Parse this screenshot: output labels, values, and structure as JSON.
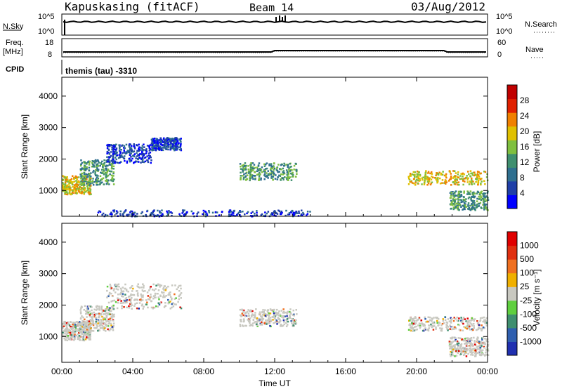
{
  "header": {
    "station": "Kapuskasing (fitACF)",
    "beam": "Beam 14",
    "date": "03/Aug/2012"
  },
  "status_panels": {
    "nsky_label": "N.Sky",
    "nsearch_label": "N.Search",
    "nsky_ticks": [
      "10^5",
      "10^0"
    ],
    "nsearch_ticks": [
      "10^5",
      "10^0"
    ],
    "freq_label_1": "Freq.",
    "freq_label_2": "[MHz]",
    "freq_ticks": [
      "18",
      "8"
    ],
    "nave_label": "Nave",
    "nave_ticks": [
      "60",
      "0"
    ],
    "cpid_label": "CPID",
    "cpid_text": "themis (tau) -3310"
  },
  "colors": {
    "power_scale": [
      "#0000ff",
      "#1f3fa8",
      "#2f6f8f",
      "#3f8f6f",
      "#7fbf3f",
      "#e0c000",
      "#f08000",
      "#e02000",
      "#c00000"
    ],
    "velocity_scale": [
      "#2030b0",
      "#2f5faf",
      "#3f8f6f",
      "#5fcf3f",
      "#c8c8c0",
      "#f0b000",
      "#f07020",
      "#e03010",
      "#e00000"
    ]
  },
  "chart_data": [
    {
      "type": "heatmap",
      "name": "power",
      "xlabel": "",
      "ylabel": "Slant Range [km]",
      "x_ticks": [
        "00:00",
        "04:00",
        "08:00",
        "12:00",
        "16:00",
        "20:00",
        "00:00"
      ],
      "y_ticks": [
        "1000",
        "2000",
        "3000",
        "4000"
      ],
      "xlim_hours": [
        0,
        24
      ],
      "ylim_km": [
        180,
        4600
      ],
      "colorbar_label": "Power [dB]",
      "colorbar_ticks": [
        "28",
        "24",
        "20",
        "16",
        "12",
        "8",
        "4"
      ],
      "features": [
        {
          "t0": 0.0,
          "t1": 1.6,
          "r0": 900,
          "r1": 1500,
          "level": "high"
        },
        {
          "t0": 1.0,
          "t1": 2.9,
          "r0": 1200,
          "r1": 2000,
          "level": "mid"
        },
        {
          "t0": 2.5,
          "t1": 5.0,
          "r0": 1900,
          "r1": 2500,
          "level": "low"
        },
        {
          "t0": 5.0,
          "t1": 6.7,
          "r0": 2300,
          "r1": 2700,
          "level": "low"
        },
        {
          "t0": 10.0,
          "t1": 13.2,
          "r0": 1350,
          "r1": 1900,
          "level": "mid"
        },
        {
          "t0": 19.5,
          "t1": 24.0,
          "r0": 1200,
          "r1": 1650,
          "level": "high"
        },
        {
          "t0": 21.8,
          "t1": 24.0,
          "r0": 400,
          "r1": 1000,
          "level": "mid"
        },
        {
          "t0": 2.0,
          "t1": 14.0,
          "r0": 200,
          "r1": 400,
          "level": "low"
        }
      ]
    },
    {
      "type": "heatmap",
      "name": "velocity",
      "xlabel": "Time UT",
      "ylabel": "Slant Range [km]",
      "x_ticks": [
        "00:00",
        "04:00",
        "08:00",
        "12:00",
        "16:00",
        "20:00",
        "00:00"
      ],
      "y_ticks": [
        "1000",
        "2000",
        "3000",
        "4000"
      ],
      "xlim_hours": [
        0,
        24
      ],
      "ylim_km": [
        180,
        4600
      ],
      "colorbar_label": "Velocity [m s⁻¹]",
      "colorbar_ticks": [
        "1000",
        "500",
        "100",
        "25",
        "-25",
        "-100",
        "-500",
        "-1000"
      ],
      "features": [
        {
          "t0": 0.0,
          "t1": 1.6,
          "r0": 900,
          "r1": 1500,
          "level": "ground"
        },
        {
          "t0": 1.0,
          "t1": 2.9,
          "r0": 1200,
          "r1": 2000,
          "level": "ground"
        },
        {
          "t0": 2.5,
          "t1": 6.7,
          "r0": 1900,
          "r1": 2700,
          "level": "ground"
        },
        {
          "t0": 10.0,
          "t1": 13.2,
          "r0": 1350,
          "r1": 1900,
          "level": "ground"
        },
        {
          "t0": 19.5,
          "t1": 24.0,
          "r0": 1200,
          "r1": 1650,
          "level": "ground"
        },
        {
          "t0": 21.8,
          "t1": 24.0,
          "r0": 400,
          "r1": 1000,
          "level": "ground"
        }
      ]
    }
  ]
}
